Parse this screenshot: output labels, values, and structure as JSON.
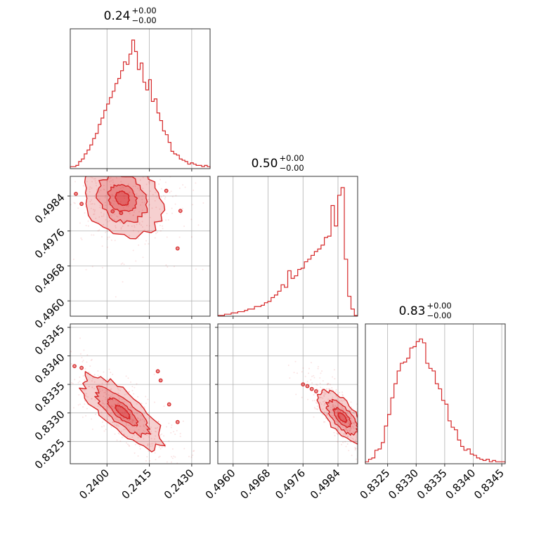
{
  "theme": {
    "color": "#d62728",
    "grid": "#b0b0b0"
  },
  "params": [
    {
      "id": "p0",
      "title_value": "0.24",
      "plus": "+0.00",
      "minus": "−0.00",
      "range": [
        0.2387,
        0.24365
      ],
      "ticks": [
        "0.2400",
        "0.2415",
        "0.2430"
      ]
    },
    {
      "id": "p1",
      "title_value": "0.50",
      "plus": "+0.00",
      "minus": "−0.00",
      "range": [
        0.49565,
        0.49885
      ],
      "ticks": [
        "0.4960",
        "0.4968",
        "0.4976",
        "0.4984"
      ]
    },
    {
      "id": "p2",
      "title_value": "0.83",
      "plus": "+0.00",
      "minus": "−0.00",
      "range": [
        0.83211,
        0.83456
      ],
      "ticks": [
        "0.8325",
        "0.8330",
        "0.8335",
        "0.8340",
        "0.8345"
      ]
    }
  ],
  "chart_data": {
    "type": "corner",
    "grid": true,
    "histograms": [
      {
        "param": "p0",
        "x_range": [
          0.2387,
          0.24365
        ],
        "densities": [
          0.01,
          0.01,
          0.02,
          0.05,
          0.07,
          0.11,
          0.14,
          0.18,
          0.23,
          0.27,
          0.34,
          0.39,
          0.45,
          0.5,
          0.55,
          0.6,
          0.66,
          0.7,
          0.76,
          0.83,
          0.81,
          0.89,
          1.0,
          0.91,
          0.77,
          0.82,
          0.67,
          0.61,
          0.69,
          0.52,
          0.54,
          0.43,
          0.37,
          0.29,
          0.26,
          0.2,
          0.13,
          0.11,
          0.1,
          0.07,
          0.06,
          0.05,
          0.03,
          0.04,
          0.03,
          0.02,
          0.02,
          0.01,
          0.02,
          0.01
        ]
      },
      {
        "param": "p1",
        "x_range": [
          0.49565,
          0.49885
        ],
        "densities": [
          0.0,
          0.0,
          0.01,
          0.01,
          0.02,
          0.02,
          0.03,
          0.03,
          0.04,
          0.05,
          0.05,
          0.07,
          0.07,
          0.08,
          0.1,
          0.11,
          0.14,
          0.16,
          0.19,
          0.24,
          0.22,
          0.35,
          0.29,
          0.31,
          0.36,
          0.37,
          0.42,
          0.44,
          0.47,
          0.5,
          0.52,
          0.55,
          0.61,
          0.62,
          0.86,
          0.7,
          0.94,
          1.0,
          0.44,
          0.15,
          0.05,
          0.0
        ]
      },
      {
        "param": "p2",
        "x_range": [
          0.83211,
          0.83456
        ],
        "densities": [
          0.01,
          0.03,
          0.04,
          0.1,
          0.11,
          0.16,
          0.29,
          0.38,
          0.51,
          0.62,
          0.72,
          0.78,
          0.79,
          0.82,
          0.9,
          0.91,
          0.95,
          0.97,
          0.94,
          0.78,
          0.74,
          0.72,
          0.62,
          0.58,
          0.49,
          0.46,
          0.33,
          0.28,
          0.26,
          0.18,
          0.13,
          0.1,
          0.11,
          0.07,
          0.06,
          0.04,
          0.03,
          0.02,
          0.03,
          0.01,
          0.02,
          0.01,
          0.01,
          0.01
        ]
      }
    ],
    "scatter_2d": [
      {
        "x": "p0",
        "y": "p1",
        "core": {
          "cx": 0.24055,
          "cy": 0.49835,
          "sx": 0.00055,
          "sy": 0.00034,
          "corr": -0.15
        },
        "stray_points": [
          [
            0.2389,
            0.49845
          ],
          [
            0.2391,
            0.49822
          ],
          [
            0.2402,
            0.49805
          ],
          [
            0.2405,
            0.49801
          ],
          [
            0.2421,
            0.49852
          ],
          [
            0.2426,
            0.49806
          ],
          [
            0.2425,
            0.4972
          ]
        ]
      },
      {
        "x": "p0",
        "y": "p2",
        "core": {
          "cx": 0.24055,
          "cy": 0.83302,
          "sx": 0.00055,
          "sy": 0.00024,
          "corr": -0.8
        },
        "stray_points": [
          [
            0.23885,
            0.83382
          ],
          [
            0.2391,
            0.83379
          ],
          [
            0.2418,
            0.83373
          ],
          [
            0.2419,
            0.83357
          ],
          [
            0.2422,
            0.83315
          ],
          [
            0.2425,
            0.83284
          ]
        ]
      },
      {
        "x": "p1",
        "y": "p2",
        "core": {
          "cx": 0.4985,
          "cy": 0.83292,
          "sx": 0.00022,
          "sy": 0.0002,
          "corr": -0.85
        },
        "stray_points": [
          [
            0.4976,
            0.8335
          ],
          [
            0.4977,
            0.83347
          ],
          [
            0.4978,
            0.83342
          ],
          [
            0.4979,
            0.83338
          ]
        ]
      }
    ]
  }
}
